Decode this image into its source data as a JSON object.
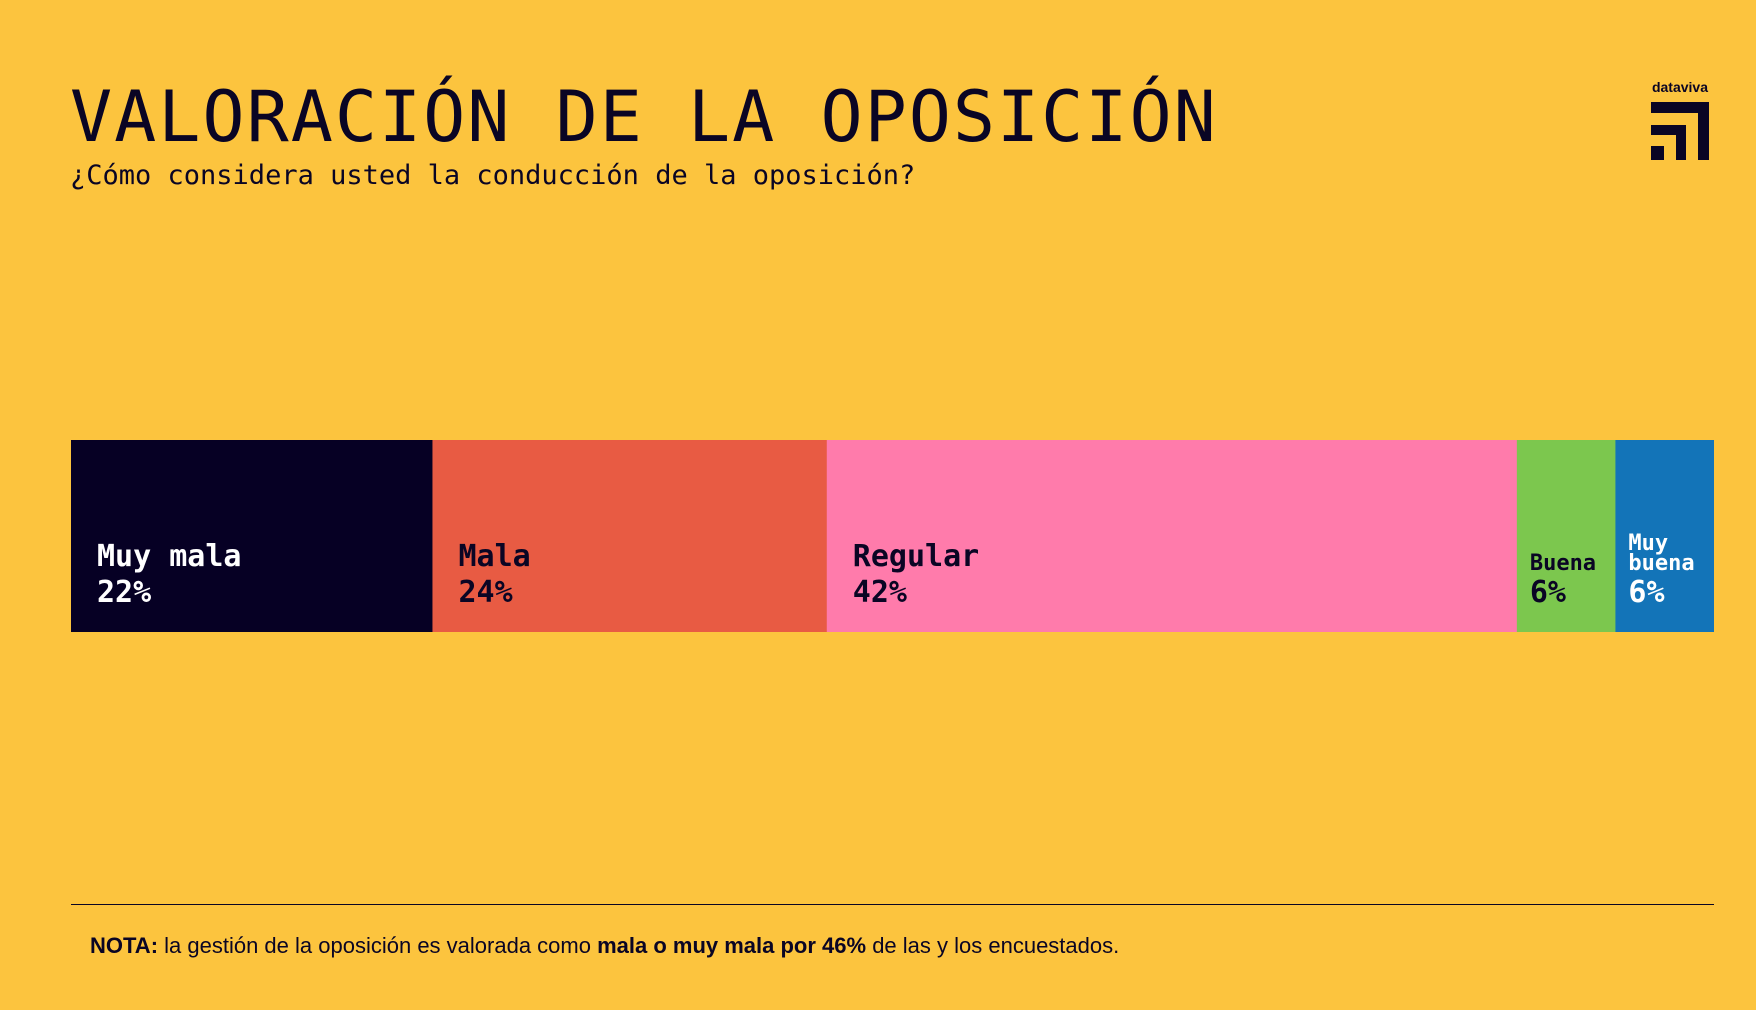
{
  "colors": {
    "background": "#fcc43e",
    "text": "#0a0524"
  },
  "brand": {
    "name": "dataviva",
    "icon": "dataviva-logo-icon"
  },
  "note": {
    "prefix": "NOTA:",
    "text_before": " la gestión de la oposición es valorada como ",
    "emphasis": "mala o muy mala por 46%",
    "text_after": " de las y los encuestados."
  },
  "chart_data": {
    "type": "bar",
    "orientation": "horizontal-stacked-100",
    "title": "VALORACIÓN DE LA OPOSICIÓN",
    "subtitle": "¿Cómo considera usted la conducción de la oposición?",
    "categories": [
      "Muy mala",
      "Mala",
      "Regular",
      "Buena",
      "Muy buena"
    ],
    "values": [
      22,
      24,
      42,
      6,
      6
    ],
    "value_labels": [
      "22%",
      "24%",
      "42%",
      "6%",
      "6%"
    ],
    "label_lines": [
      [
        "Muy mala"
      ],
      [
        "Mala"
      ],
      [
        "Regular"
      ],
      [
        "Buena"
      ],
      [
        "Muy",
        "buena"
      ]
    ],
    "colors": [
      "#060024",
      "#e85b43",
      "#ff7bab",
      "#7cc74e",
      "#1374b8"
    ],
    "label_colors": [
      "#ffffff",
      "#0a0524",
      "#0a0524",
      "#0a0524",
      "#ffffff"
    ],
    "xlim": [
      0,
      100
    ],
    "grid": false,
    "legend": "none"
  }
}
